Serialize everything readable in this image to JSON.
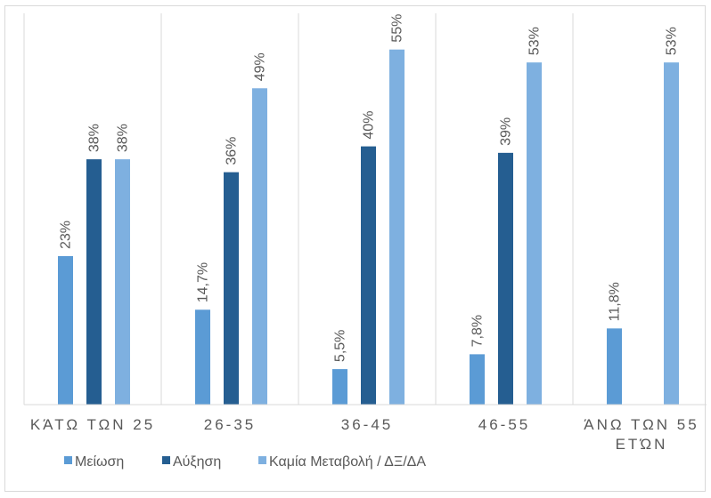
{
  "chart_data": {
    "type": "bar",
    "title": "",
    "xlabel": "",
    "ylabel": "",
    "ylim": [
      0,
      60
    ],
    "grid": "vertical category separators",
    "legend_position": "bottom",
    "categories": [
      [
        "ΚΆΤΩ ΤΩΝ 25"
      ],
      [
        "26-35"
      ],
      [
        "36-45"
      ],
      [
        "46-55"
      ],
      [
        "ΆΝΩ ΤΩΝ 55",
        "ΕΤΏΝ"
      ]
    ],
    "series": [
      {
        "name": "Μείωση",
        "color": "#5b9bd5",
        "values": [
          23,
          14.7,
          5.5,
          7.8,
          11.8
        ],
        "labels": [
          "23%",
          "14,7%",
          "5,5%",
          "7,8%",
          "11,8%"
        ]
      },
      {
        "name": "Αύξηση",
        "color": "#255e91",
        "values": [
          38,
          36,
          40,
          39,
          null
        ],
        "labels": [
          "38%",
          "36%",
          "40%",
          "39%",
          null
        ]
      },
      {
        "name": "Καμία Μεταβολή / ΔΞ/ΔΑ",
        "color": "#7eb0e0",
        "values": [
          38,
          49,
          55,
          53,
          53
        ],
        "labels": [
          "38%",
          "49%",
          "55%",
          "53%",
          "53%"
        ]
      }
    ]
  }
}
